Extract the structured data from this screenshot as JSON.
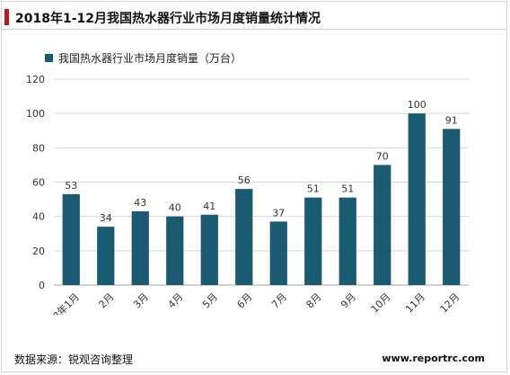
{
  "page": {
    "title": "2018年1-12月我国热水器行业市场月度销量统计情况",
    "source": "数据来源：锐观咨询整理",
    "site": "www.reportrc.com"
  },
  "colors": {
    "bar": "#1b5b72",
    "accent": "#c0161c",
    "grid": "#d9d9d9",
    "axis": "#a6a6a6"
  },
  "chart_data": {
    "type": "bar",
    "title": "2018年1-12月我国热水器行业市场月度销量统计情况",
    "xlabel": "",
    "ylabel": "",
    "categories": [
      "2018年1月",
      "2月",
      "3月",
      "4月",
      "5月",
      "6月",
      "7月",
      "8月",
      "9月",
      "10月",
      "11月",
      "12月"
    ],
    "series": [
      {
        "name": "我国热水器行业市场月度销量（万台）",
        "values": [
          53,
          34,
          43,
          40,
          41,
          56,
          37,
          51,
          51,
          70,
          100,
          91
        ]
      }
    ],
    "ylim": [
      0,
      120
    ],
    "yticks": [
      0,
      20,
      40,
      60,
      80,
      100,
      120
    ],
    "grid": true,
    "legend_position": "top-left",
    "data_labels": true
  }
}
